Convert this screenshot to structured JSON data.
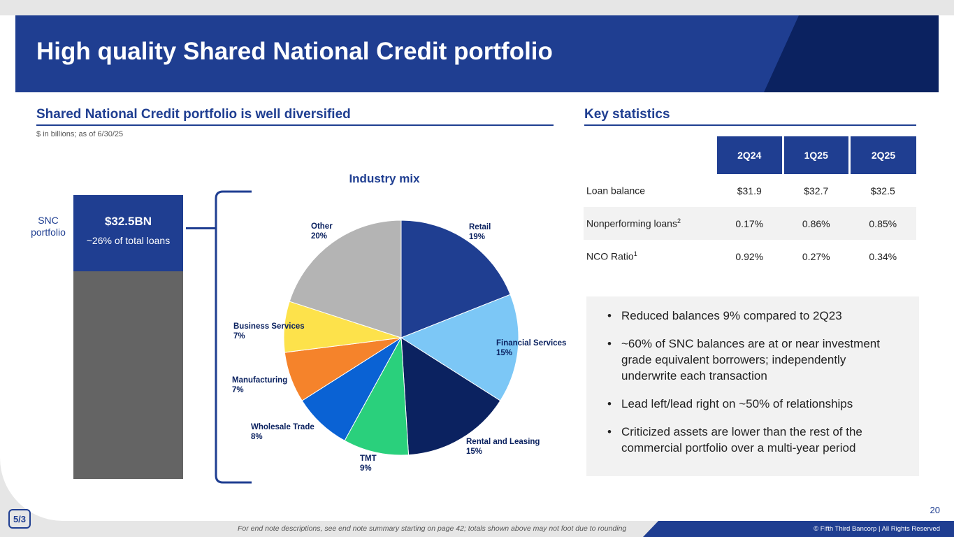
{
  "header": {
    "title": "High quality Shared National Credit portfolio"
  },
  "left_section": {
    "title": "Shared National Credit portfolio is well diversified",
    "subnote": "$ in billions; as of 6/30/25",
    "snc_label_line1": "SNC",
    "snc_label_line2": "portfolio",
    "bar_value": "$32.5BN",
    "bar_caption": "~26% of total loans"
  },
  "chart_data": {
    "type": "pie",
    "title": "Industry mix",
    "slices": [
      {
        "label": "Retail",
        "pct_label": "19%",
        "value": 19,
        "color": "#1f3e91"
      },
      {
        "label": "Financial Services",
        "pct_label": "15%",
        "value": 15,
        "color": "#7cc7f6"
      },
      {
        "label": "Rental and Leasing",
        "pct_label": "15%",
        "value": 15,
        "color": "#0b2260"
      },
      {
        "label": "TMT",
        "pct_label": "9%",
        "value": 9,
        "color": "#2ad07c"
      },
      {
        "label": "Wholesale Trade",
        "pct_label": "8%",
        "value": 8,
        "color": "#0a62d4"
      },
      {
        "label": "Manufacturing",
        "pct_label": "7%",
        "value": 7,
        "color": "#f5832b"
      },
      {
        "label": "Business Services",
        "pct_label": "7%",
        "value": 7,
        "color": "#fde24b"
      },
      {
        "label": "Other",
        "pct_label": "20%",
        "value": 20,
        "color": "#b4b4b4"
      }
    ]
  },
  "right_section": {
    "title": "Key statistics",
    "columns": [
      "2Q24",
      "1Q25",
      "2Q25"
    ],
    "rows": [
      {
        "label": "Loan balance",
        "sup": "",
        "values": [
          "$31.9",
          "$32.7",
          "$32.5"
        ]
      },
      {
        "label": "Nonperforming loans",
        "sup": "2",
        "values": [
          "0.17%",
          "0.86%",
          "0.85%"
        ]
      },
      {
        "label": "NCO Ratio",
        "sup": "1",
        "values": [
          "0.92%",
          "0.27%",
          "0.34%"
        ]
      }
    ],
    "bullets": [
      "Reduced balances 9% compared to 2Q23",
      "~60% of SNC balances are at or near investment grade equivalent borrowers; independently underwrite each transaction",
      "Lead left/lead right on ~50% of relationships",
      "Criticized assets are lower than the rest of the commercial portfolio over a multi-year period"
    ]
  },
  "footer": {
    "page_number": "20",
    "footnote": "For end note descriptions, see end note summary starting on page 42; totals shown above may not foot due to rounding",
    "copyright": "© Fifth Third Bancorp | All Rights Reserved",
    "logo_text": "5/3"
  }
}
